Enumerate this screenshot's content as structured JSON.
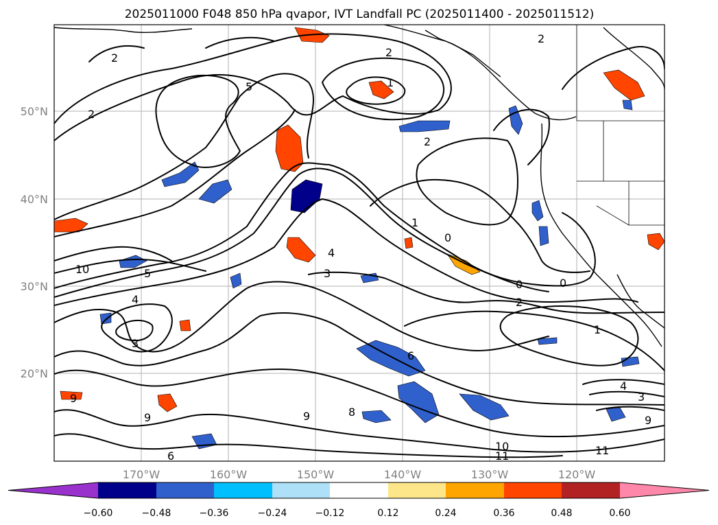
{
  "title": "2025011000 F048 850 hPa qvapor, IVT Landfall PC (2025011400 - 2025011512)",
  "map": {
    "lon_labels": [
      "170°W",
      "160°W",
      "150°W",
      "140°W",
      "130°W",
      "120°W"
    ],
    "lat_labels": [
      "50°N",
      "40°N",
      "30°N",
      "20°N"
    ],
    "grid": true
  },
  "colorbar": {
    "colors": [
      "#9932cc",
      "#00008b",
      "#3060cc",
      "#00bfff",
      "#aee0f8",
      "#ffffff",
      "#fde68a",
      "#ffa500",
      "#ff4500",
      "#b22222",
      "#ff88aa"
    ],
    "tick_labels": [
      "−0.60",
      "−0.48",
      "−0.36",
      "−0.24",
      "−0.12",
      "0.12",
      "0.24",
      "0.36",
      "0.48",
      "0.60"
    ],
    "extend": "both"
  },
  "contour_labels": [
    "2",
    "2",
    "5",
    "1",
    "2",
    "10",
    "5",
    "4",
    "3",
    "4",
    "3",
    "2",
    "1",
    "0",
    "0",
    "0",
    "2",
    "1",
    "6",
    "4",
    "3",
    "10",
    "11",
    "11",
    "9",
    "9",
    "8",
    "9",
    "6",
    "9",
    "2"
  ]
}
